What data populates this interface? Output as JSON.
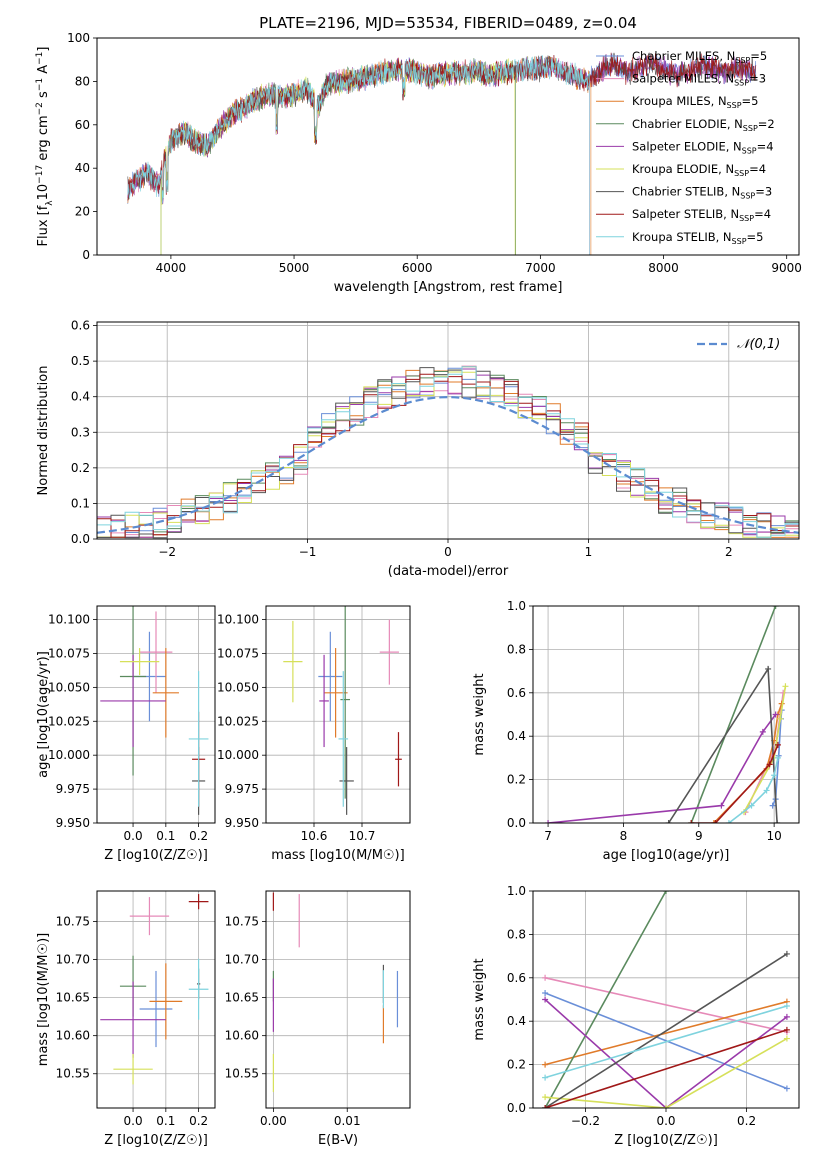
{
  "title": "PLATE=2196, MJD=53534, FIBERID=0489, z=0.04",
  "series_names": [
    "Chabrier MILES, N_SSP=5",
    "Salpeter MILES, N_SSP=3",
    "Kroupa MILES, N_SSP=5",
    "Chabrier ELODIE, N_SSP=2",
    "Salpeter ELODIE, N_SSP=4",
    "Kroupa ELODIE, N_SSP=4",
    "Chabrier STELIB, N_SSP=3",
    "Salpeter STELIB, N_SSP=4",
    "Kroupa STELIB, N_SSP=5"
  ],
  "legend_labels": [
    {
      "pre": "Chabrier MILES, N",
      "post": "=5"
    },
    {
      "pre": "Salpeter MILES, N",
      "post": "=3"
    },
    {
      "pre": "Kroupa MILES, N",
      "post": "=5"
    },
    {
      "pre": "Chabrier ELODIE, N",
      "post": "=2"
    },
    {
      "pre": "Salpeter ELODIE, N",
      "post": "=4"
    },
    {
      "pre": "Kroupa ELODIE, N",
      "post": "=4"
    },
    {
      "pre": "Chabrier STELIB, N",
      "post": "=3"
    },
    {
      "pre": "Salpeter STELIB, N",
      "post": "=4"
    },
    {
      "pre": "Kroupa STELIB, N",
      "post": "=5"
    }
  ],
  "legend_sub": "SSP",
  "colors": [
    "#6a8fd8",
    "#e68ab8",
    "#e07b2a",
    "#5a8a5e",
    "#9a3aaa",
    "#d6e05a",
    "#555555",
    "#a01818",
    "#7fd3de"
  ],
  "chart_data": [
    {
      "id": "spectrum",
      "type": "line",
      "xlabel": "wavelength [Angstrom, rest frame]",
      "ylabel_parts": {
        "a": "Flux [f",
        "sub1": "λ",
        "b": "10",
        "sup1": "−17",
        "c": " erg cm",
        "sup2": "−2",
        "d": " s",
        "sup3": "−1",
        "e": " A",
        "sup4": "−1",
        "f": "]"
      },
      "xlim": [
        3400,
        9100
      ],
      "ylim": [
        0,
        100
      ],
      "xticks": [
        4000,
        5000,
        6000,
        7000,
        8000,
        9000
      ],
      "yticks": [
        0,
        20,
        40,
        60,
        80,
        100
      ],
      "continuum": [
        [
          3650,
          30
        ],
        [
          3800,
          38
        ],
        [
          3900,
          32
        ],
        [
          3950,
          45
        ],
        [
          4000,
          52
        ],
        [
          4100,
          57
        ],
        [
          4200,
          52
        ],
        [
          4300,
          50
        ],
        [
          4400,
          59
        ],
        [
          4500,
          65
        ],
        [
          4600,
          68
        ],
        [
          4700,
          72
        ],
        [
          4800,
          74
        ],
        [
          4900,
          73
        ],
        [
          5000,
          74
        ],
        [
          5100,
          77
        ],
        [
          5150,
          72
        ],
        [
          5200,
          68
        ],
        [
          5250,
          77
        ],
        [
          5300,
          79
        ],
        [
          5400,
          80
        ],
        [
          5500,
          81
        ],
        [
          5600,
          82
        ],
        [
          5700,
          84
        ],
        [
          5800,
          85
        ],
        [
          5900,
          86
        ],
        [
          6000,
          84
        ],
        [
          6100,
          82
        ],
        [
          6200,
          83
        ],
        [
          6300,
          84
        ],
        [
          6400,
          84
        ],
        [
          6500,
          85
        ],
        [
          6560,
          83
        ],
        [
          6700,
          84
        ],
        [
          6800,
          85
        ],
        [
          7000,
          86
        ],
        [
          7100,
          87
        ],
        [
          7200,
          84
        ],
        [
          7300,
          82
        ],
        [
          7400,
          80
        ],
        [
          7500,
          86
        ],
        [
          7600,
          88
        ],
        [
          7700,
          84
        ],
        [
          7800,
          86
        ],
        [
          7900,
          88
        ],
        [
          8000,
          86
        ],
        [
          8100,
          83
        ],
        [
          8200,
          85
        ],
        [
          8300,
          87
        ],
        [
          8400,
          86
        ],
        [
          8500,
          84
        ],
        [
          8600,
          86
        ],
        [
          8700,
          85
        ],
        [
          8750,
          84
        ]
      ],
      "series_ranges": [
        [
          3650,
          8750
        ],
        [
          3650,
          7400
        ],
        [
          3650,
          7410
        ],
        [
          3920,
          6800
        ],
        [
          3650,
          8750
        ],
        [
          3920,
          6795
        ],
        [
          3650,
          8750
        ],
        [
          3650,
          8750
        ],
        [
          3650,
          7400
        ]
      ]
    },
    {
      "id": "residuals",
      "type": "histogram",
      "xlabel": "(data-model)/error",
      "ylabel": "Normed distribution",
      "xlim": [
        -2.5,
        2.5
      ],
      "ylim": [
        0,
        0.61
      ],
      "xticks": [
        -2,
        -1,
        0,
        1,
        2
      ],
      "yticks": [
        0.0,
        0.1,
        0.2,
        0.3,
        0.4,
        0.5,
        0.6
      ],
      "bin_width": 0.1,
      "reference_label": "𝒩(0,1)",
      "reference_color": "#5b8bd0"
    },
    {
      "id": "age_vs_Z",
      "type": "errorbar",
      "xlabel": "Z [log10(Z/Z☉)]",
      "ylabel": "age [log10(age/yr)]",
      "xlim": [
        -0.11,
        0.25
      ],
      "ylim": [
        9.95,
        10.11
      ],
      "xticks": [
        0.0,
        0.1,
        0.2
      ],
      "yticks": [
        9.95,
        9.975,
        10.0,
        10.025,
        10.05,
        10.075,
        10.1
      ],
      "points": [
        {
          "x": 0.05,
          "y": 10.058,
          "ex": 0.05,
          "ey": 0.033
        },
        {
          "x": 0.07,
          "y": 10.076,
          "ex": 0.05,
          "ey": 0.03
        },
        {
          "x": 0.1,
          "y": 10.046,
          "ex": 0.04,
          "ey": 0.033
        },
        {
          "x": 0.0,
          "y": 10.058,
          "ex": 0.04,
          "ey": 0.073
        },
        {
          "x": 0.0,
          "y": 10.04,
          "ex": 0.1,
          "ey": 0.034
        },
        {
          "x": 0.02,
          "y": 10.069,
          "ex": 0.06,
          "ey": 0.01
        },
        {
          "x": 0.2,
          "y": 9.981,
          "ex": 0.02,
          "ey": 0.025
        },
        {
          "x": 0.2,
          "y": 9.997,
          "ex": 0.02,
          "ey": 0.035
        },
        {
          "x": 0.2,
          "y": 10.012,
          "ex": 0.03,
          "ey": 0.05
        }
      ]
    },
    {
      "id": "age_vs_mass",
      "type": "errorbar",
      "xlabel": "mass [log10(M/M☉)]",
      "ylabel": "",
      "xlim": [
        10.5,
        10.8
      ],
      "ylim": [
        9.95,
        10.11
      ],
      "xticks": [
        10.6,
        10.7
      ],
      "yticks": [
        9.95,
        9.975,
        10.0,
        10.025,
        10.05,
        10.075,
        10.1
      ],
      "points": [
        {
          "x": 10.634,
          "y": 10.058,
          "ex": 0.025,
          "ey": 0.033
        },
        {
          "x": 10.757,
          "y": 10.076,
          "ex": 0.02,
          "ey": 0.024
        },
        {
          "x": 10.645,
          "y": 10.046,
          "ex": 0.025,
          "ey": 0.033
        },
        {
          "x": 10.665,
          "y": 10.041,
          "ex": 0.01,
          "ey": 0.073
        },
        {
          "x": 10.621,
          "y": 10.04,
          "ex": 0.01,
          "ey": 0.034
        },
        {
          "x": 10.556,
          "y": 10.069,
          "ex": 0.02,
          "ey": 0.03
        },
        {
          "x": 10.668,
          "y": 9.981,
          "ex": 0.015,
          "ey": 0.025
        },
        {
          "x": 10.776,
          "y": 9.997,
          "ex": 0.007,
          "ey": 0.02
        },
        {
          "x": 10.661,
          "y": 10.012,
          "ex": 0.01,
          "ey": 0.05
        }
      ]
    },
    {
      "id": "weight_vs_age",
      "type": "line",
      "xlabel": "age [log10(age/yr)]",
      "ylabel": "mass weight",
      "xlim": [
        6.8,
        10.33
      ],
      "ylim": [
        0,
        1
      ],
      "xticks": [
        7,
        8,
        9,
        10
      ],
      "yticks": [
        0.0,
        0.2,
        0.4,
        0.6,
        0.8,
        1.0
      ],
      "series": [
        {
          "x": [
            9.98,
            10.02,
            10.06,
            10.09,
            10.1
          ],
          "y": [
            0.08,
            0.11,
            0.31,
            0.48,
            0.52
          ]
        },
        {
          "x": [
            9.62,
            10.02,
            10.12
          ],
          "y": [
            0.05,
            0.35,
            0.6
          ]
        },
        {
          "x": [
            9.2,
            9.9,
            10.0,
            10.05,
            10.1
          ],
          "y": [
            0.0,
            0.25,
            0.38,
            0.5,
            0.55
          ]
        },
        {
          "x": [
            8.9,
            10.02
          ],
          "y": [
            0.0,
            1.0
          ]
        },
        {
          "x": [
            7.0,
            9.3,
            9.85,
            10.02
          ],
          "y": [
            0.0,
            0.08,
            0.42,
            0.5
          ]
        },
        {
          "x": [
            9.6,
            10.0,
            10.08,
            10.15
          ],
          "y": [
            0.05,
            0.3,
            0.48,
            0.63
          ]
        },
        {
          "x": [
            8.6,
            9.92,
            10.04
          ],
          "y": [
            0.0,
            0.71,
            0.0
          ]
        },
        {
          "x": [
            8.9,
            9.22,
            9.94,
            10.05
          ],
          "y": [
            0.0,
            0.0,
            0.27,
            0.36
          ]
        },
        {
          "x": [
            9.4,
            9.7,
            9.9,
            10.0,
            10.05
          ],
          "y": [
            0.0,
            0.08,
            0.15,
            0.22,
            0.3
          ]
        }
      ]
    },
    {
      "id": "mass_vs_Z",
      "type": "errorbar",
      "xlabel": "Z [log10(Z/Z☉)]",
      "ylabel": "mass [log10(M/M☉)]",
      "xlim": [
        -0.11,
        0.25
      ],
      "ylim": [
        10.505,
        10.79
      ],
      "xticks": [
        0.0,
        0.1,
        0.2
      ],
      "yticks": [
        10.55,
        10.6,
        10.65,
        10.7,
        10.75
      ],
      "points": [
        {
          "x": 0.07,
          "y": 10.635,
          "ex": 0.05,
          "ey": 0.05
        },
        {
          "x": 0.05,
          "y": 10.757,
          "ex": 0.06,
          "ey": 0.025
        },
        {
          "x": 0.1,
          "y": 10.645,
          "ex": 0.05,
          "ey": 0.05
        },
        {
          "x": 0.0,
          "y": 10.665,
          "ex": 0.04,
          "ey": 0.04
        },
        {
          "x": 0.0,
          "y": 10.621,
          "ex": 0.1,
          "ey": 0.05
        },
        {
          "x": 0.0,
          "y": 10.556,
          "ex": 0.06,
          "ey": 0.02
        },
        {
          "x": 0.2,
          "y": 10.668,
          "ex": 0.005,
          "ey": 0.02
        },
        {
          "x": 0.2,
          "y": 10.776,
          "ex": 0.03,
          "ey": 0.01
        },
        {
          "x": 0.2,
          "y": 10.661,
          "ex": 0.03,
          "ey": 0.04
        }
      ]
    },
    {
      "id": "mass_vs_ebv",
      "type": "errorbar",
      "xlabel": "E(B-V)",
      "ylabel": "",
      "xlim": [
        -0.001,
        0.0185
      ],
      "ylim": [
        10.505,
        10.79
      ],
      "xticks": [
        0.0,
        0.01
      ],
      "yticks": [
        10.55,
        10.6,
        10.65,
        10.7,
        10.75
      ],
      "points": [
        {
          "x": 0.0168,
          "y": 10.648,
          "ex": 0.0,
          "ey": 0.037
        },
        {
          "x": 0.0035,
          "y": 10.751,
          "ex": 0.0,
          "ey": 0.035
        },
        {
          "x": 0.0149,
          "y": 10.615,
          "ex": 0.0,
          "ey": 0.025
        },
        {
          "x": 0.0,
          "y": 10.665,
          "ex": 0.0,
          "ey": 0.02
        },
        {
          "x": 0.0,
          "y": 10.64,
          "ex": 0.0,
          "ey": 0.035
        },
        {
          "x": 0.0,
          "y": 10.551,
          "ex": 0.0,
          "ey": 0.025
        },
        {
          "x": 0.0149,
          "y": 10.668,
          "ex": 0.0,
          "ey": 0.025
        },
        {
          "x": 0.0,
          "y": 10.776,
          "ex": 0.0,
          "ey": 0.012
        },
        {
          "x": 0.0149,
          "y": 10.661,
          "ex": 0.0,
          "ey": 0.025
        }
      ]
    },
    {
      "id": "weight_vs_Z",
      "type": "line",
      "xlabel": "Z [log10(Z/Z☉)]",
      "ylabel": "mass weight",
      "xlim": [
        -0.33,
        0.33
      ],
      "ylim": [
        0,
        1
      ],
      "xticks": [
        -0.2,
        0.0,
        0.2
      ],
      "yticks": [
        0.0,
        0.2,
        0.4,
        0.6,
        0.8,
        1.0
      ],
      "series": [
        {
          "x": [
            -0.3,
            0.3
          ],
          "y": [
            0.53,
            0.09
          ]
        },
        {
          "x": [
            -0.3,
            0.3
          ],
          "y": [
            0.6,
            0.35
          ]
        },
        {
          "x": [
            -0.3,
            0.3
          ],
          "y": [
            0.2,
            0.49
          ]
        },
        {
          "x": [
            -0.3,
            0.0
          ],
          "y": [
            0.0,
            1.0
          ]
        },
        {
          "x": [
            -0.3,
            0.0,
            0.3
          ],
          "y": [
            0.5,
            0.0,
            0.42
          ]
        },
        {
          "x": [
            -0.3,
            0.0,
            0.3
          ],
          "y": [
            0.05,
            0.0,
            0.32
          ]
        },
        {
          "x": [
            -0.3,
            0.3
          ],
          "y": [
            0.0,
            0.71
          ]
        },
        {
          "x": [
            -0.3,
            0.3
          ],
          "y": [
            0.0,
            0.36
          ]
        },
        {
          "x": [
            -0.3,
            0.3
          ],
          "y": [
            0.14,
            0.47
          ]
        }
      ]
    }
  ]
}
